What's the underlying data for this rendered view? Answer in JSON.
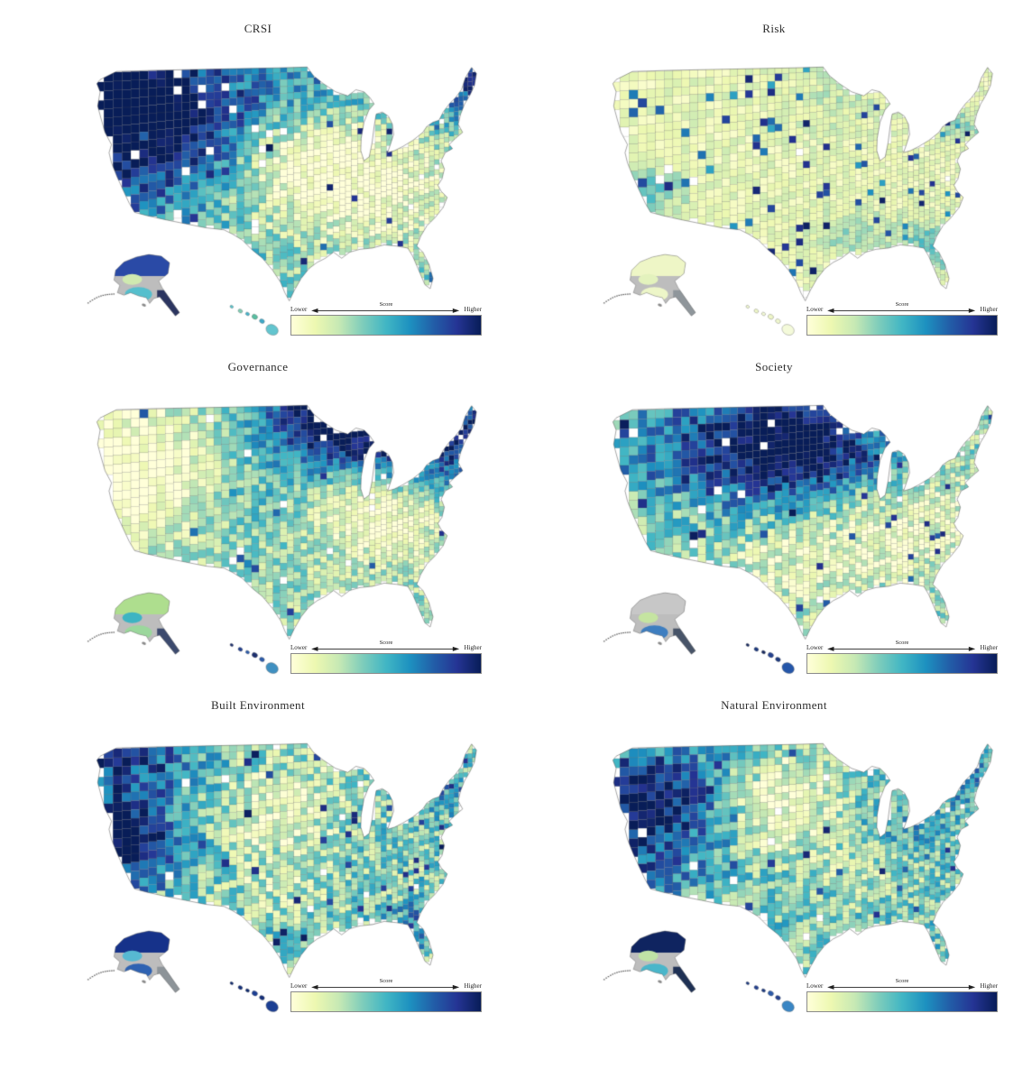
{
  "legend": {
    "lower": "Lower",
    "score": "Score",
    "higher": "Higher"
  },
  "colormap": {
    "name": "YlGnBu",
    "stops": [
      "#ffffd9",
      "#edf8b1",
      "#c7e9b4",
      "#7fcdbb",
      "#41b6c4",
      "#1d91c0",
      "#225ea8",
      "#253494",
      "#081d58"
    ]
  },
  "no_data_color": "#bdbdbd",
  "chart_data": [
    {
      "type": "choropleth",
      "title": "CRSI",
      "geography": "US counties (contiguous US with Alaska and Hawaii insets)",
      "measure": "CRSI score, Lower to Higher",
      "high_regions": "Mountain West, Pacific Northwest, New England, upper Midwest",
      "low_regions": "Southeast and southern Great Plains",
      "render": {
        "seed": 11,
        "base": 0.42,
        "noise": 0.2,
        "gap": 0.015,
        "speckle": {
          "p": 0.02,
          "lo": 0.7,
          "hi": 1
        },
        "hotspots": [
          {
            "x": 0.12,
            "y": 0.4,
            "r": 0.2,
            "s": 0.52
          },
          {
            "x": 0.1,
            "y": 0.12,
            "r": 0.14,
            "s": 0.38
          },
          {
            "x": 0.26,
            "y": 0.25,
            "r": 0.14,
            "s": 0.3
          },
          {
            "x": 0.93,
            "y": 0.15,
            "r": 0.1,
            "s": 0.42
          },
          {
            "x": 0.62,
            "y": 0.15,
            "r": 0.12,
            "s": 0.18
          },
          {
            "x": 0.72,
            "y": 0.58,
            "r": 0.2,
            "s": -0.34
          },
          {
            "x": 0.52,
            "y": 0.5,
            "r": 0.14,
            "s": -0.18
          },
          {
            "x": 0.6,
            "y": 0.38,
            "r": 0.12,
            "s": -0.15
          }
        ]
      },
      "alaska": {
        "north": "#2a4aa6",
        "patch": "#cfe9b0",
        "south": "#55bfcd",
        "panhandle": "#2b3560"
      },
      "hawaii": [
        "#58c2ca",
        "#7fcdb4",
        "#45b1c9",
        "#59bfa2",
        "#3fa9c9",
        "#63c5cf"
      ]
    },
    {
      "type": "choropleth",
      "title": "Risk",
      "geography": "US counties (contiguous US with Alaska and Hawaii insets)",
      "measure": "Risk score, Lower to Higher",
      "high_regions": "Florida, Gulf Coast, Southern California, scattered metro counties",
      "low_regions": "Most of the interior; Alaska largely no-data",
      "render": {
        "seed": 22,
        "base": 0.13,
        "noise": 0.1,
        "gap": 0.008,
        "speckle": {
          "p": 0.065,
          "lo": 0.55,
          "hi": 0.98
        },
        "hotspots": [
          {
            "x": 0.85,
            "y": 0.8,
            "r": 0.07,
            "s": 0.35
          },
          {
            "x": 0.13,
            "y": 0.58,
            "r": 0.07,
            "s": 0.3
          },
          {
            "x": 0.9,
            "y": 0.32,
            "r": 0.05,
            "s": 0.22
          },
          {
            "x": 0.63,
            "y": 0.75,
            "r": 0.07,
            "s": 0.18
          },
          {
            "x": 0.6,
            "y": 0.22,
            "r": 0.1,
            "s": 0.1
          }
        ]
      },
      "alaska": {
        "north": "#eef6c6",
        "patch": "#e3f2bd",
        "south": "#edf6c8",
        "panhandle": "#8f969b"
      },
      "hawaii": [
        "#f0f8cf",
        "#eef6c8",
        "#f2f9d4",
        "#eef6c8",
        "#f0f8cf",
        "#f4fada"
      ]
    },
    {
      "type": "choropleth",
      "title": "Governance",
      "geography": "US counties (contiguous US with Alaska and Hawaii insets)",
      "measure": "Governance score, Lower to Higher",
      "high_regions": "Northeast, Minnesota/Wisconsin and upper Midwest",
      "low_regions": "Far West, lower Midwest and Appalachia",
      "render": {
        "seed": 33,
        "base": 0.3,
        "noise": 0.18,
        "gap": 0.01,
        "speckle": {
          "p": 0.015,
          "lo": 0.6,
          "hi": 0.9
        },
        "hotspots": [
          {
            "x": 0.93,
            "y": 0.2,
            "r": 0.16,
            "s": 0.62
          },
          {
            "x": 0.6,
            "y": 0.1,
            "r": 0.12,
            "s": 0.6
          },
          {
            "x": 0.68,
            "y": 0.25,
            "r": 0.12,
            "s": 0.3
          },
          {
            "x": 0.45,
            "y": 0.45,
            "r": 0.14,
            "s": 0.18
          },
          {
            "x": 0.07,
            "y": 0.3,
            "r": 0.18,
            "s": -0.3
          },
          {
            "x": 0.18,
            "y": 0.45,
            "r": 0.14,
            "s": -0.18
          },
          {
            "x": 0.7,
            "y": 0.47,
            "r": 0.11,
            "s": -0.32
          },
          {
            "x": 0.78,
            "y": 0.6,
            "r": 0.12,
            "s": -0.12
          }
        ]
      },
      "alaska": {
        "north": "#aede8e",
        "patch": "#3db4c2",
        "south": "#9bd79c",
        "panhandle": "#3c4a6e"
      },
      "hawaii": [
        "#1d306f",
        "#24418f",
        "#2d5ba9",
        "#1d306f",
        "#2d5ba9",
        "#3f90c1"
      ]
    },
    {
      "type": "choropleth",
      "title": "Society",
      "geography": "US counties (contiguous US with Alaska and Hawaii insets)",
      "measure": "Society score, Lower to Higher",
      "high_regions": "Northern Great Plains and upper Midwest",
      "low_regions": "Southeast, south Texas",
      "render": {
        "seed": 44,
        "base": 0.34,
        "noise": 0.22,
        "gap": 0.01,
        "speckle": {
          "p": 0.03,
          "lo": 0.7,
          "hi": 1
        },
        "hotspots": [
          {
            "x": 0.44,
            "y": 0.18,
            "r": 0.18,
            "s": 0.55
          },
          {
            "x": 0.56,
            "y": 0.28,
            "r": 0.12,
            "s": 0.35
          },
          {
            "x": 0.35,
            "y": 0.35,
            "r": 0.12,
            "s": 0.2
          },
          {
            "x": 0.13,
            "y": 0.28,
            "r": 0.1,
            "s": 0.18
          },
          {
            "x": 0.74,
            "y": 0.6,
            "r": 0.16,
            "s": -0.25
          },
          {
            "x": 0.46,
            "y": 0.75,
            "r": 0.12,
            "s": -0.18
          },
          {
            "x": 0.88,
            "y": 0.45,
            "r": 0.08,
            "s": -0.1
          }
        ]
      },
      "alaska": {
        "north": "#c7c7c7",
        "patch": "#c5e4a1",
        "south": "#3e7ec0",
        "panhandle": "#475468"
      },
      "hawaii": [
        "#17295f",
        "#1d3a7f",
        "#17295f",
        "#24418f",
        "#1d3a7f",
        "#2456a9"
      ]
    },
    {
      "type": "choropleth",
      "title": "Built Environment",
      "geography": "US counties (contiguous US with Alaska and Hawaii insets)",
      "measure": "Built Environment score, Lower to Higher",
      "high_regions": "California and Pacific Coast, Southwest, Florida, Northeast metros",
      "low_regions": "Central Great Plains",
      "render": {
        "seed": 55,
        "base": 0.38,
        "noise": 0.24,
        "gap": 0.012,
        "speckle": {
          "p": 0.03,
          "lo": 0.75,
          "hi": 1
        },
        "hotspots": [
          {
            "x": 0.05,
            "y": 0.45,
            "r": 0.12,
            "s": 0.6
          },
          {
            "x": 0.08,
            "y": 0.12,
            "r": 0.11,
            "s": 0.5
          },
          {
            "x": 0.16,
            "y": 0.52,
            "r": 0.09,
            "s": 0.32
          },
          {
            "x": 0.85,
            "y": 0.8,
            "r": 0.06,
            "s": 0.3
          },
          {
            "x": 0.9,
            "y": 0.28,
            "r": 0.07,
            "s": 0.22
          },
          {
            "x": 0.28,
            "y": 0.22,
            "r": 0.1,
            "s": 0.2
          },
          {
            "x": 0.47,
            "y": 0.33,
            "r": 0.13,
            "s": -0.3
          },
          {
            "x": 0.5,
            "y": 0.65,
            "r": 0.09,
            "s": -0.15
          }
        ]
      },
      "alaska": {
        "north": "#16328a",
        "patch": "#57b9d2",
        "south": "#2e62b2",
        "panhandle": "#8d9499"
      },
      "hawaii": [
        "#0f2a6e",
        "#142f7a",
        "#0f2a6e",
        "#1c3f94",
        "#142f7a",
        "#1c3f94"
      ]
    },
    {
      "type": "choropleth",
      "title": "Natural Environment",
      "geography": "US counties (contiguous US with Alaska and Hawaii insets)",
      "measure": "Natural Environment score, Lower to Higher",
      "high_regions": "Great Basin and interior West, scattered Northeast",
      "low_regions": "Central Plains corridor, Southeast patches",
      "render": {
        "seed": 66,
        "base": 0.4,
        "noise": 0.22,
        "gap": 0.01,
        "speckle": {
          "p": 0.02,
          "lo": 0.7,
          "hi": 0.95
        },
        "hotspots": [
          {
            "x": 0.13,
            "y": 0.28,
            "r": 0.13,
            "s": 0.5
          },
          {
            "x": 0.2,
            "y": 0.45,
            "r": 0.15,
            "s": 0.28
          },
          {
            "x": 0.08,
            "y": 0.6,
            "r": 0.08,
            "s": 0.2
          },
          {
            "x": 0.9,
            "y": 0.22,
            "r": 0.07,
            "s": 0.22
          },
          {
            "x": 0.76,
            "y": 0.42,
            "r": 0.08,
            "s": 0.15
          },
          {
            "x": 0.42,
            "y": 0.4,
            "r": 0.12,
            "s": -0.35
          },
          {
            "x": 0.48,
            "y": 0.22,
            "r": 0.1,
            "s": -0.2
          },
          {
            "x": 0.68,
            "y": 0.6,
            "r": 0.1,
            "s": -0.12
          }
        ]
      },
      "alaska": {
        "north": "#0f2460",
        "patch": "#bfe3a6",
        "south": "#4ab6ca",
        "panhandle": "#1e3054"
      },
      "hawaii": [
        "#1d3a7f",
        "#24418f",
        "#1d3a7f",
        "#2d5ba9",
        "#24418f",
        "#3a86c4"
      ]
    }
  ]
}
